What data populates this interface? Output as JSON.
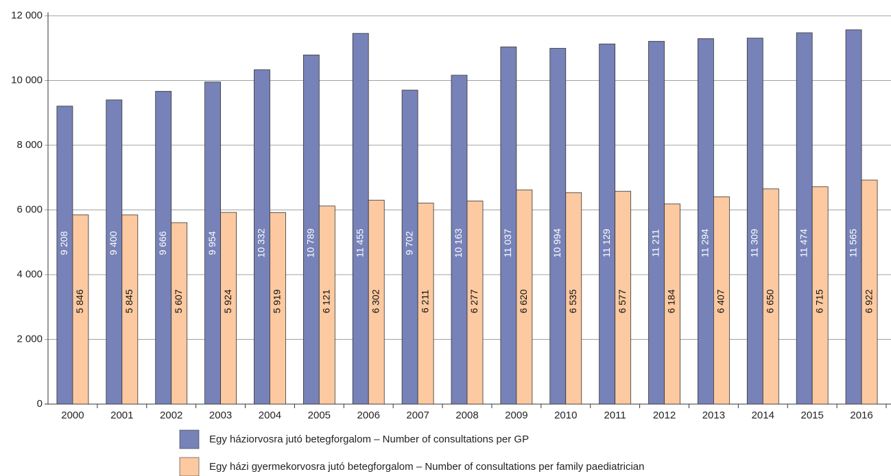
{
  "chart_data": {
    "type": "bar",
    "categories": [
      "2000",
      "2001",
      "2002",
      "2003",
      "2004",
      "2005",
      "2006",
      "2007",
      "2008",
      "2009",
      "2010",
      "2011",
      "2012",
      "2013",
      "2014",
      "2015",
      "2016"
    ],
    "series": [
      {
        "name": "Egy háziorvosra jutó betegforgalom – Number of consultations per GP",
        "color": "#7782b8",
        "values": [
          9208,
          9400,
          9666,
          9954,
          10332,
          10789,
          11455,
          9702,
          10163,
          11037,
          10994,
          11129,
          11211,
          11294,
          11309,
          11474,
          11565
        ],
        "value_labels": [
          "9 208",
          "9 400",
          "9 666",
          "9 954",
          "10 332",
          "10 789",
          "11 455",
          "9 702",
          "10 163",
          "11 037",
          "10 994",
          "11 129",
          "11 211",
          "11 294",
          "11 309",
          "11 474",
          "11 565"
        ]
      },
      {
        "name": "Egy házi gyermekorvosra jutó betegforgalom – Number of consultations per family paediatrician",
        "color": "#fcc9a0",
        "values": [
          5846,
          5845,
          5607,
          5924,
          5919,
          6121,
          6302,
          6211,
          6277,
          6620,
          6535,
          6577,
          6184,
          6407,
          6650,
          6715,
          6922
        ],
        "value_labels": [
          "5 846",
          "5 845",
          "5 607",
          "5 924",
          "5 919",
          "6 121",
          "6 302",
          "6 211",
          "6 277",
          "6 620",
          "6 535",
          "6 577",
          "6 184",
          "6 407",
          "6 650",
          "6 715",
          "6 922"
        ]
      }
    ],
    "ylim": [
      0,
      12000
    ],
    "yticks": [
      0,
      {
        "value": 2000,
        "label": "2 000"
      },
      {
        "value": 4000,
        "label": "4 000"
      },
      {
        "value": 6000,
        "label": "6 000"
      },
      {
        "value": 8000,
        "label": "8 000"
      },
      {
        "value": 10000,
        "label": "10 000"
      },
      {
        "value": 12000,
        "label": "12 000"
      }
    ],
    "grid": true,
    "legend": "bottom"
  }
}
